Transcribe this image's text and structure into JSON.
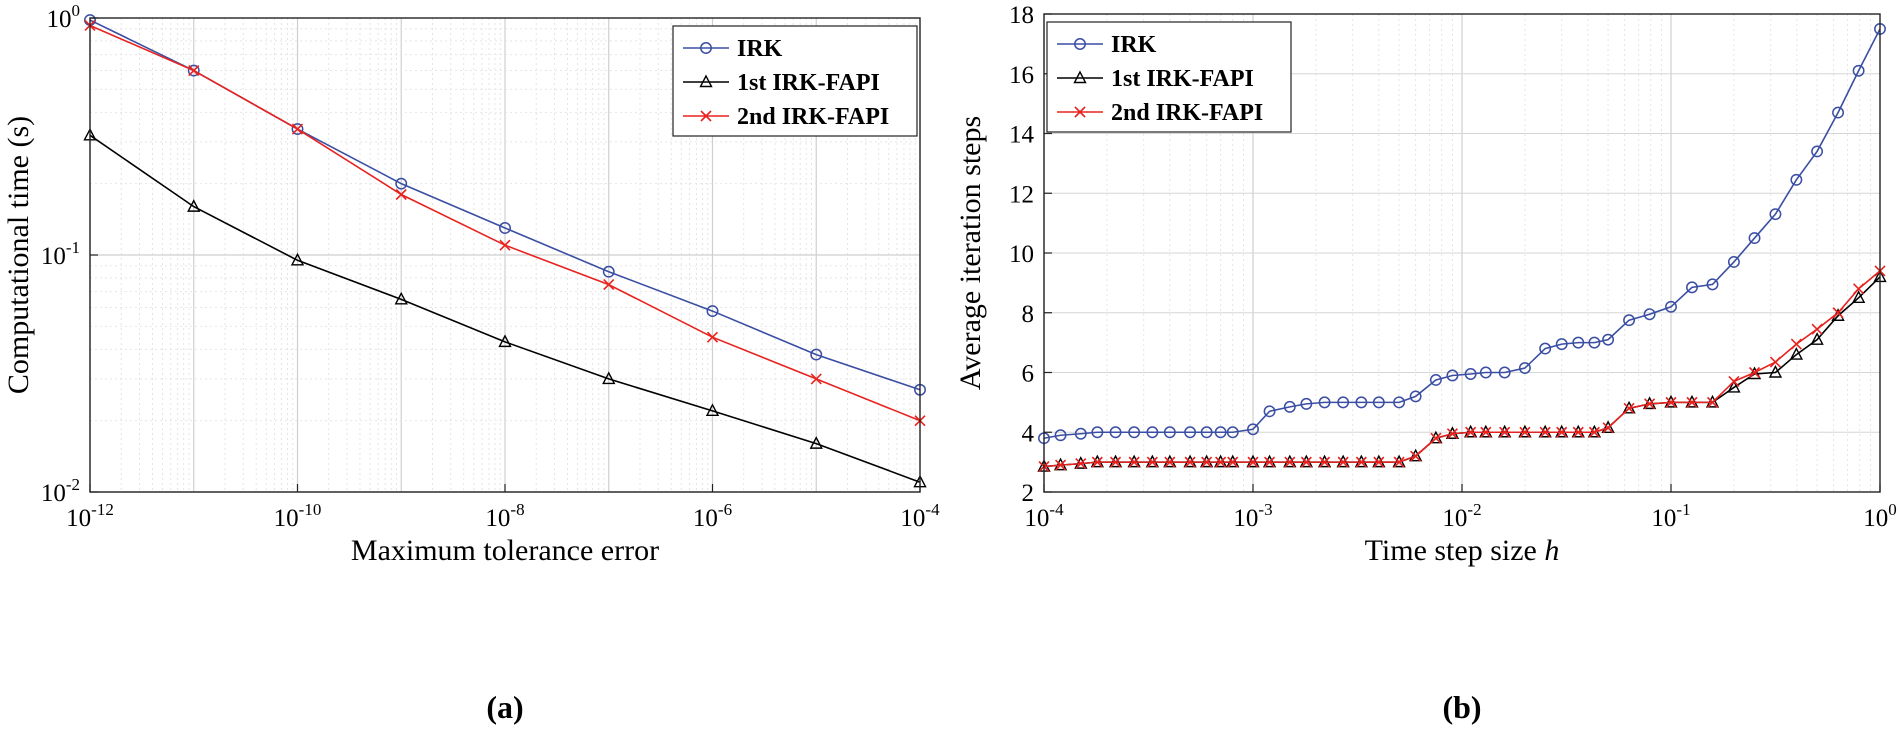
{
  "chart_data": [
    {
      "type": "line",
      "panel_label": "(a)",
      "xlabel": "Maximum tolerance error",
      "ylabel": "Computational time (s)",
      "xscale": "log",
      "yscale": "log",
      "xlim": [
        1e-12,
        0.0001
      ],
      "ylim": [
        0.01,
        1
      ],
      "grid": true,
      "legend_position": "top-right",
      "xticks": [
        {
          "value": 1e-12,
          "base": "10",
          "exp": "-12"
        },
        {
          "value": 1e-10,
          "base": "10",
          "exp": "-10"
        },
        {
          "value": 1e-08,
          "base": "10",
          "exp": "-8"
        },
        {
          "value": 1e-06,
          "base": "10",
          "exp": "-6"
        },
        {
          "value": 0.0001,
          "base": "10",
          "exp": "-4"
        }
      ],
      "yticks": [
        {
          "value": 0.01,
          "base": "10",
          "exp": "-2"
        },
        {
          "value": 0.1,
          "base": "10",
          "exp": "-1"
        },
        {
          "value": 1,
          "base": "10",
          "exp": "0"
        }
      ],
      "series": [
        {
          "name": "IRK",
          "color": "#3a4ea3",
          "marker": "circle",
          "x": [
            1e-12,
            1e-11,
            1e-10,
            1e-09,
            1e-08,
            1e-07,
            1e-06,
            1e-05,
            0.0001
          ],
          "y": [
            0.98,
            0.6,
            0.34,
            0.2,
            0.13,
            0.085,
            0.058,
            0.038,
            0.027
          ]
        },
        {
          "name": "1st IRK-FAPI",
          "color": "#000000",
          "marker": "triangle",
          "x": [
            1e-12,
            1e-11,
            1e-10,
            1e-09,
            1e-08,
            1e-07,
            1e-06,
            1e-05,
            0.0001
          ],
          "y": [
            0.32,
            0.16,
            0.095,
            0.065,
            0.043,
            0.03,
            0.022,
            0.016,
            0.011
          ]
        },
        {
          "name": "2nd IRK-FAPI",
          "color": "#e8231f",
          "marker": "x",
          "x": [
            1e-12,
            1e-11,
            1e-10,
            1e-09,
            1e-08,
            1e-07,
            1e-06,
            1e-05,
            0.0001
          ],
          "y": [
            0.93,
            0.6,
            0.34,
            0.18,
            0.11,
            0.075,
            0.045,
            0.03,
            0.02
          ]
        }
      ]
    },
    {
      "type": "line",
      "panel_label": "(b)",
      "xlabel": "Time step size",
      "xlabel_symbol": "h",
      "ylabel": "Average iteration steps",
      "xscale": "log",
      "yscale": "linear",
      "xlim": [
        0.0001,
        1
      ],
      "ylim": [
        2,
        18
      ],
      "grid": true,
      "legend_position": "top-left",
      "xticks": [
        {
          "value": 0.0001,
          "base": "10",
          "exp": "-4"
        },
        {
          "value": 0.001,
          "base": "10",
          "exp": "-3"
        },
        {
          "value": 0.01,
          "base": "10",
          "exp": "-2"
        },
        {
          "value": 0.1,
          "base": "10",
          "exp": "-1"
        },
        {
          "value": 1,
          "base": "10",
          "exp": "0"
        }
      ],
      "yticks": [
        {
          "value": 2,
          "label": "2"
        },
        {
          "value": 4,
          "label": "4"
        },
        {
          "value": 6,
          "label": "6"
        },
        {
          "value": 8,
          "label": "8"
        },
        {
          "value": 10,
          "label": "10"
        },
        {
          "value": 12,
          "label": "12"
        },
        {
          "value": 14,
          "label": "14"
        },
        {
          "value": 16,
          "label": "16"
        },
        {
          "value": 18,
          "label": "18"
        }
      ],
      "series": [
        {
          "name": "IRK",
          "color": "#3a4ea3",
          "marker": "circle",
          "x": [
            0.0001,
            0.00012,
            0.00015,
            0.00018,
            0.00022,
            0.00027,
            0.00033,
            0.0004,
            0.0005,
            0.0006,
            0.0007,
            0.0008,
            0.001,
            0.0012,
            0.0015,
            0.0018,
            0.0022,
            0.0027,
            0.0033,
            0.004,
            0.005,
            0.006,
            0.0075,
            0.009,
            0.011,
            0.013,
            0.016,
            0.02,
            0.025,
            0.03,
            0.036,
            0.043,
            0.05,
            0.063,
            0.079,
            0.1,
            0.126,
            0.158,
            0.2,
            0.251,
            0.316,
            0.398,
            0.5,
            0.63,
            0.79,
            1.0
          ],
          "y": [
            3.8,
            3.9,
            3.95,
            4.0,
            4.0,
            4.0,
            4.0,
            4.0,
            4.0,
            4.0,
            4.0,
            4.0,
            4.1,
            4.7,
            4.85,
            4.95,
            5.0,
            5.0,
            5.0,
            5.0,
            5.0,
            5.2,
            5.75,
            5.9,
            5.95,
            6.0,
            6.0,
            6.15,
            6.8,
            6.95,
            7.0,
            7.0,
            7.1,
            7.75,
            7.95,
            8.2,
            8.85,
            8.95,
            9.7,
            10.5,
            11.3,
            12.45,
            13.4,
            14.7,
            16.1,
            17.5
          ]
        },
        {
          "name": "1st IRK-FAPI",
          "color": "#000000",
          "marker": "triangle",
          "x": [
            0.0001,
            0.00012,
            0.00015,
            0.00018,
            0.00022,
            0.00027,
            0.00033,
            0.0004,
            0.0005,
            0.0006,
            0.0007,
            0.0008,
            0.001,
            0.0012,
            0.0015,
            0.0018,
            0.0022,
            0.0027,
            0.0033,
            0.004,
            0.005,
            0.006,
            0.0075,
            0.009,
            0.011,
            0.013,
            0.016,
            0.02,
            0.025,
            0.03,
            0.036,
            0.043,
            0.05,
            0.063,
            0.079,
            0.1,
            0.126,
            0.158,
            0.2,
            0.251,
            0.316,
            0.398,
            0.5,
            0.63,
            0.79,
            1.0
          ],
          "y": [
            2.85,
            2.9,
            2.95,
            3.0,
            3.0,
            3.0,
            3.0,
            3.0,
            3.0,
            3.0,
            3.0,
            3.0,
            3.0,
            3.0,
            3.0,
            3.0,
            3.0,
            3.0,
            3.0,
            3.0,
            3.0,
            3.2,
            3.8,
            3.95,
            4.0,
            4.0,
            4.0,
            4.0,
            4.0,
            4.0,
            4.0,
            4.0,
            4.15,
            4.8,
            4.95,
            5.0,
            5.0,
            5.0,
            5.5,
            5.95,
            6.0,
            6.6,
            7.1,
            7.9,
            8.5,
            9.2
          ]
        },
        {
          "name": "2nd IRK-FAPI",
          "color": "#e8231f",
          "marker": "x",
          "x": [
            0.0001,
            0.00012,
            0.00015,
            0.00018,
            0.00022,
            0.00027,
            0.00033,
            0.0004,
            0.0005,
            0.0006,
            0.0007,
            0.0008,
            0.001,
            0.0012,
            0.0015,
            0.0018,
            0.0022,
            0.0027,
            0.0033,
            0.004,
            0.005,
            0.006,
            0.0075,
            0.009,
            0.011,
            0.013,
            0.016,
            0.02,
            0.025,
            0.03,
            0.036,
            0.043,
            0.05,
            0.063,
            0.079,
            0.1,
            0.126,
            0.158,
            0.2,
            0.251,
            0.316,
            0.398,
            0.5,
            0.63,
            0.79,
            1.0
          ],
          "y": [
            2.85,
            2.9,
            2.95,
            3.0,
            3.0,
            3.0,
            3.0,
            3.0,
            3.0,
            3.0,
            3.0,
            3.0,
            3.0,
            3.0,
            3.0,
            3.0,
            3.0,
            3.0,
            3.0,
            3.0,
            3.0,
            3.2,
            3.8,
            3.95,
            4.0,
            4.0,
            4.0,
            4.0,
            4.0,
            4.0,
            4.0,
            4.0,
            4.15,
            4.8,
            4.95,
            5.0,
            5.0,
            5.0,
            5.7,
            6.0,
            6.35,
            6.95,
            7.45,
            8.0,
            8.8,
            9.4
          ]
        }
      ]
    }
  ]
}
